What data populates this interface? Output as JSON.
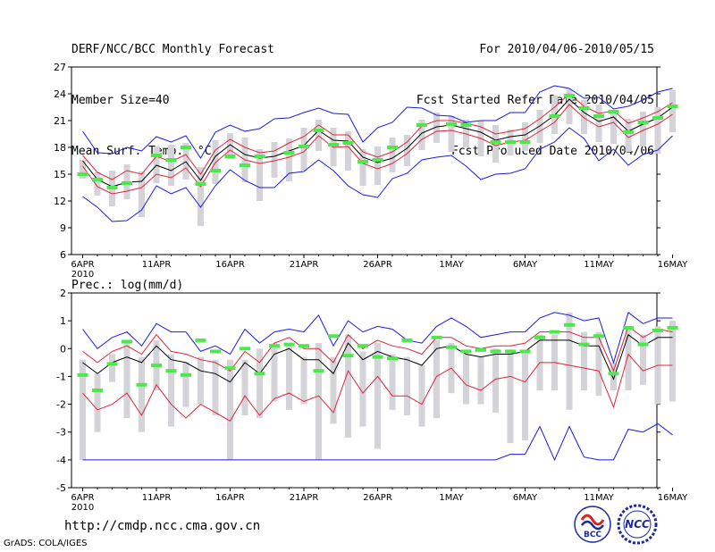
{
  "header": {
    "title": "DERF/NCC/BCC Monthly Forecast",
    "member_size": "Member Size=40",
    "variable": "Mean Surf. Temp.: °C",
    "for_range": "For 2010/04/06-2010/05/15",
    "refer_date": "Fcst Started Refer Date 2010/04/05",
    "produced_date": "Fcst Produced Date 2010/04/06"
  },
  "footer": {
    "url": "http://cmdp.ncc.cma.gov.cn",
    "credit": "GrADS: COLA/IGES",
    "logo_left_text": "BCC",
    "logo_right_text": "NCC"
  },
  "colors": {
    "mean": "#000000",
    "spread": "#e0233a",
    "extreme": "#1a1ae6",
    "box": "#d4d4d8",
    "obs": "#4ee84e"
  },
  "chart_data": [
    {
      "type": "box",
      "title": "Mean Surf. Temp.: °C",
      "ylim": [
        6,
        27
      ],
      "yticks": [
        6,
        9,
        12,
        15,
        18,
        21,
        24,
        27
      ],
      "xlim": [
        0,
        40
      ],
      "xticks": [
        {
          "x": 0,
          "label": "6APR",
          "sub": "2010"
        },
        {
          "x": 5,
          "label": "11APR"
        },
        {
          "x": 10,
          "label": "16APR"
        },
        {
          "x": 15,
          "label": "21APR"
        },
        {
          "x": 20,
          "label": "26APR"
        },
        {
          "x": 25,
          "label": "1MAY"
        },
        {
          "x": 30,
          "label": "6MAY"
        },
        {
          "x": 35,
          "label": "11MAY"
        },
        {
          "x": 40,
          "label": "16MAY"
        }
      ],
      "series": [
        {
          "name": "ensemble mean",
          "values": [
            16.5,
            14.4,
            13.6,
            14.1,
            14.2,
            16.0,
            15.4,
            16.4,
            14.3,
            17.0,
            18.3,
            17.2,
            16.8,
            17.0,
            17.6,
            18.2,
            19.9,
            18.8,
            18.7,
            16.9,
            16.3,
            16.8,
            17.9,
            19.6,
            20.3,
            20.5,
            20.1,
            19.7,
            18.8,
            19.2,
            19.4,
            20.4,
            21.6,
            23.4,
            21.9,
            20.9,
            21.4,
            19.8,
            20.6,
            21.3,
            22.5
          ]
        },
        {
          "name": "mean + spread",
          "values": [
            17.1,
            15.2,
            14.4,
            15.4,
            15.0,
            17.0,
            16.4,
            17.2,
            15.0,
            17.7,
            18.9,
            18.0,
            17.4,
            17.6,
            18.5,
            19.2,
            20.5,
            19.4,
            19.4,
            17.5,
            16.9,
            17.5,
            18.6,
            20.4,
            21.0,
            21.0,
            20.7,
            20.3,
            19.5,
            19.8,
            20.1,
            21.2,
            22.5,
            24.0,
            22.6,
            21.8,
            22.1,
            20.7,
            21.3,
            22.0,
            23.0
          ]
        },
        {
          "name": "mean - spread",
          "values": [
            15.9,
            13.6,
            12.8,
            13.1,
            13.5,
            15.0,
            14.6,
            15.7,
            13.6,
            16.3,
            17.7,
            16.6,
            16.2,
            16.5,
            16.9,
            17.5,
            19.3,
            18.0,
            18.1,
            16.2,
            15.6,
            16.2,
            17.3,
            18.9,
            19.8,
            19.9,
            19.5,
            19.0,
            18.2,
            18.6,
            18.8,
            19.8,
            20.8,
            22.8,
            21.3,
            20.3,
            20.8,
            19.1,
            19.9,
            20.6,
            21.7
          ]
        },
        {
          "name": "ensemble max",
          "values": [
            19.8,
            17.4,
            17.3,
            18.0,
            17.6,
            19.2,
            18.6,
            19.3,
            16.8,
            19.7,
            20.5,
            19.8,
            20.1,
            21.2,
            21.3,
            21.9,
            22.4,
            21.8,
            21.7,
            18.6,
            20.2,
            20.8,
            22.5,
            22.4,
            21.6,
            21.5,
            20.8,
            21.0,
            21.0,
            21.9,
            21.9,
            24.2,
            24.9,
            24.6,
            23.5,
            23.6,
            22.3,
            22.6,
            23.3,
            24.2,
            24.6
          ]
        },
        {
          "name": "ensemble min",
          "values": [
            12.5,
            11.3,
            9.7,
            9.8,
            11.0,
            13.7,
            12.8,
            13.5,
            11.3,
            13.7,
            15.5,
            14.3,
            13.5,
            13.5,
            15.1,
            15.3,
            16.6,
            15.4,
            13.7,
            12.7,
            12.4,
            14.5,
            15.1,
            16.6,
            16.9,
            17.1,
            15.9,
            14.4,
            15.0,
            15.1,
            15.6,
            17.8,
            18.6,
            20.2,
            19.0,
            16.5,
            17.8,
            16.0,
            17.2,
            17.7,
            19.3
          ]
        }
      ],
      "boxes": [
        {
          "low": 14.5,
          "high": 16.6
        },
        {
          "low": 12.6,
          "high": 15.2
        },
        {
          "low": 11.4,
          "high": 15.4
        },
        {
          "low": 12.2,
          "high": 16.1
        },
        {
          "low": 10.2,
          "high": 15.3
        },
        {
          "low": 14.0,
          "high": 18.1
        },
        {
          "low": 13.7,
          "high": 18.3
        },
        {
          "low": 14.4,
          "high": 18.5
        },
        {
          "low": 9.2,
          "high": 15.8
        },
        {
          "low": 13.9,
          "high": 18.8
        },
        {
          "low": 16.7,
          "high": 19.6
        },
        {
          "low": 14.1,
          "high": 19.1
        },
        {
          "low": 12.0,
          "high": 17.8
        },
        {
          "low": 14.6,
          "high": 18.6
        },
        {
          "low": 14.2,
          "high": 19.0
        },
        {
          "low": 15.4,
          "high": 20.2
        },
        {
          "low": 17.6,
          "high": 21.1
        },
        {
          "low": 15.9,
          "high": 20.2
        },
        {
          "low": 15.4,
          "high": 19.8
        },
        {
          "low": 13.7,
          "high": 17.8
        },
        {
          "low": 13.8,
          "high": 18.1
        },
        {
          "low": 15.2,
          "high": 19.1
        },
        {
          "low": 15.9,
          "high": 19.4
        },
        {
          "low": 17.7,
          "high": 21.1
        },
        {
          "low": 18.5,
          "high": 21.9
        },
        {
          "low": 17.5,
          "high": 21.5
        },
        {
          "low": 18.0,
          "high": 21.1
        },
        {
          "low": 17.0,
          "high": 21.0
        },
        {
          "low": 16.3,
          "high": 20.5
        },
        {
          "low": 17.1,
          "high": 20.0
        },
        {
          "low": 17.6,
          "high": 20.8
        },
        {
          "low": 18.5,
          "high": 22.2
        },
        {
          "low": 19.5,
          "high": 23.8
        },
        {
          "low": 20.6,
          "high": 24.5
        },
        {
          "low": 19.5,
          "high": 23.3
        },
        {
          "low": 18.6,
          "high": 22.8
        },
        {
          "low": 18.4,
          "high": 22.2
        },
        {
          "low": 17.5,
          "high": 21.2
        },
        {
          "low": 18.1,
          "high": 22.0
        },
        {
          "low": 17.3,
          "high": 22.5
        },
        {
          "low": 19.7,
          "high": 24.4
        }
      ],
      "observations": [
        15.0,
        14.4,
        13.5,
        14.0,
        null,
        17.1,
        16.6,
        18.0,
        13.9,
        15.4,
        17.0,
        16.0,
        17.0,
        null,
        17.4,
        18.1,
        19.9,
        18.3,
        18.5,
        16.4,
        16.6,
        18.0,
        null,
        20.5,
        null,
        20.6,
        20.5,
        null,
        18.6,
        18.6,
        18.6,
        null,
        21.5,
        23.8,
        22.4,
        21.5,
        22.0,
        19.7,
        20.8,
        21.3,
        22.6
      ]
    },
    {
      "type": "box",
      "title": "Prec.: log(mm/d)",
      "ylim": [
        -5,
        2
      ],
      "yticks": [
        -5,
        -4,
        -3,
        -2,
        -1,
        0,
        1,
        2
      ],
      "xlim": [
        0,
        40
      ],
      "xticks": [
        {
          "x": 0,
          "label": "6APR",
          "sub": "2010"
        },
        {
          "x": 5,
          "label": "11APR"
        },
        {
          "x": 10,
          "label": "16APR"
        },
        {
          "x": 15,
          "label": "21APR"
        },
        {
          "x": 20,
          "label": "26APR"
        },
        {
          "x": 25,
          "label": "1MAY"
        },
        {
          "x": 30,
          "label": "6MAY"
        },
        {
          "x": 35,
          "label": "11MAY"
        },
        {
          "x": 40,
          "label": "16MAY"
        }
      ],
      "series": [
        {
          "name": "ensemble mean",
          "values": [
            -0.5,
            -0.9,
            -0.5,
            -0.3,
            -0.5,
            0.1,
            -0.4,
            -0.5,
            -0.8,
            -0.9,
            -1.2,
            -0.5,
            -0.9,
            -0.2,
            0.0,
            -0.4,
            -0.4,
            -0.9,
            0.2,
            -0.4,
            -0.1,
            -0.3,
            -0.4,
            -0.6,
            0.0,
            0.1,
            -0.2,
            -0.3,
            -0.2,
            -0.2,
            -0.1,
            0.3,
            0.3,
            0.3,
            0.1,
            0.1,
            -1.1,
            0.5,
            0.1,
            0.4,
            0.4
          ]
        },
        {
          "name": "mean + spread",
          "values": [
            -0.1,
            -0.5,
            -0.1,
            0.1,
            -0.2,
            0.5,
            -0.1,
            -0.2,
            -0.4,
            -0.5,
            -0.8,
            -0.1,
            -0.5,
            0.2,
            0.4,
            0.0,
            0.0,
            -0.5,
            0.5,
            0.0,
            0.3,
            0.1,
            0.0,
            -0.2,
            0.4,
            0.4,
            0.1,
            0.0,
            0.1,
            0.1,
            0.2,
            0.6,
            0.6,
            0.6,
            0.4,
            0.4,
            -0.8,
            0.8,
            0.4,
            0.7,
            0.6
          ]
        },
        {
          "name": "mean - spread",
          "values": [
            -1.6,
            -2.2,
            -2.0,
            -1.6,
            -2.4,
            -1.3,
            -2.0,
            -2.5,
            -2.0,
            -2.3,
            -2.6,
            -1.7,
            -2.4,
            -1.8,
            -1.6,
            -1.9,
            -1.7,
            -2.3,
            -0.8,
            -1.6,
            -1.0,
            -1.7,
            -1.7,
            -2.0,
            -1.0,
            -0.7,
            -1.3,
            -1.5,
            -1.1,
            -1.0,
            -1.2,
            -0.5,
            -0.5,
            -0.6,
            -0.7,
            -0.8,
            -2.1,
            -0.2,
            -0.8,
            -0.6,
            -0.6
          ]
        },
        {
          "name": "ensemble max",
          "values": [
            0.7,
            0.0,
            0.4,
            0.6,
            0.1,
            0.9,
            0.6,
            0.6,
            -0.1,
            0.1,
            -0.2,
            0.7,
            0.2,
            0.6,
            0.7,
            0.6,
            1.2,
            0.1,
            1.0,
            0.6,
            0.8,
            0.7,
            0.3,
            0.2,
            0.8,
            1.1,
            0.8,
            0.4,
            0.5,
            0.6,
            0.6,
            1.1,
            1.3,
            1.2,
            1.0,
            1.1,
            -0.5,
            1.3,
            0.9,
            1.1,
            1.1
          ]
        },
        {
          "name": "ensemble min",
          "values": [
            -4.0,
            -4.0,
            -4.0,
            -4.0,
            -4.0,
            -4.0,
            -4.0,
            -4.0,
            -4.0,
            -4.0,
            -4.0,
            -4.0,
            -4.0,
            -4.0,
            -4.0,
            -4.0,
            -4.0,
            -4.0,
            -4.0,
            -4.0,
            -4.0,
            -4.0,
            -4.0,
            -4.0,
            -4.0,
            -4.0,
            -4.0,
            -4.0,
            -4.0,
            -3.8,
            -3.8,
            -2.8,
            -4.0,
            -2.8,
            -3.9,
            -4.0,
            -4.0,
            -2.9,
            -3.0,
            -2.7,
            -3.1
          ]
        }
      ],
      "boxes": [
        {
          "low": -4.0,
          "high": -0.4
        },
        {
          "low": -3.0,
          "high": -0.9
        },
        {
          "low": -1.2,
          "high": -0.2
        },
        {
          "low": -2.5,
          "high": 0.2
        },
        {
          "low": -3.0,
          "high": -0.3
        },
        {
          "low": -1.5,
          "high": 0.3
        },
        {
          "low": -2.8,
          "high": -0.2
        },
        {
          "low": -2.1,
          "high": -0.5
        },
        {
          "low": -2.0,
          "high": -0.3
        },
        {
          "low": -2.4,
          "high": -0.4
        },
        {
          "low": -4.0,
          "high": -0.4
        },
        {
          "low": -2.4,
          "high": -0.4
        },
        {
          "low": -2.5,
          "high": 0.0
        },
        {
          "low": -1.9,
          "high": 0.2
        },
        {
          "low": -2.2,
          "high": 0.1
        },
        {
          "low": -2.0,
          "high": -0.3
        },
        {
          "low": -4.0,
          "high": 0.2
        },
        {
          "low": -2.7,
          "high": -0.3
        },
        {
          "low": -3.2,
          "high": 0.5
        },
        {
          "low": -2.8,
          "high": -0.1
        },
        {
          "low": -3.6,
          "high": 0.2
        },
        {
          "low": -2.2,
          "high": -0.2
        },
        {
          "low": -2.4,
          "high": -0.3
        },
        {
          "low": -2.8,
          "high": -0.6
        },
        {
          "low": -2.5,
          "high": 0.3
        },
        {
          "low": -1.6,
          "high": 0.2
        },
        {
          "low": -2.0,
          "high": -0.2
        },
        {
          "low": -2.0,
          "high": -0.3
        },
        {
          "low": -2.3,
          "high": 0.0
        },
        {
          "low": -3.4,
          "high": -0.1
        },
        {
          "low": -3.3,
          "high": -0.1
        },
        {
          "low": -1.5,
          "high": 0.5
        },
        {
          "low": -1.5,
          "high": 0.5
        },
        {
          "low": -2.2,
          "high": 1.3
        },
        {
          "low": -1.5,
          "high": 0.6
        },
        {
          "low": -1.7,
          "high": 0.6
        },
        {
          "low": -1.5,
          "high": -0.5
        },
        {
          "low": -1.5,
          "high": 0.8
        },
        {
          "low": -1.3,
          "high": 0.5
        },
        {
          "low": -2.0,
          "high": 0.8
        },
        {
          "low": -1.9,
          "high": 1.0
        }
      ],
      "observations": [
        -0.95,
        -1.5,
        -0.55,
        0.25,
        -1.3,
        -0.6,
        -0.8,
        -0.95,
        0.3,
        -0.1,
        -0.7,
        0.0,
        -0.9,
        0.1,
        0.15,
        0.1,
        -0.8,
        0.45,
        -0.25,
        0.1,
        -0.3,
        -0.35,
        0.3,
        null,
        0.4,
        0.05,
        -0.1,
        -0.05,
        -0.1,
        -0.1,
        -0.1,
        0.4,
        0.6,
        0.85,
        0.15,
        0.45,
        -0.9,
        0.75,
        0.15,
        0.65,
        0.75
      ]
    }
  ]
}
